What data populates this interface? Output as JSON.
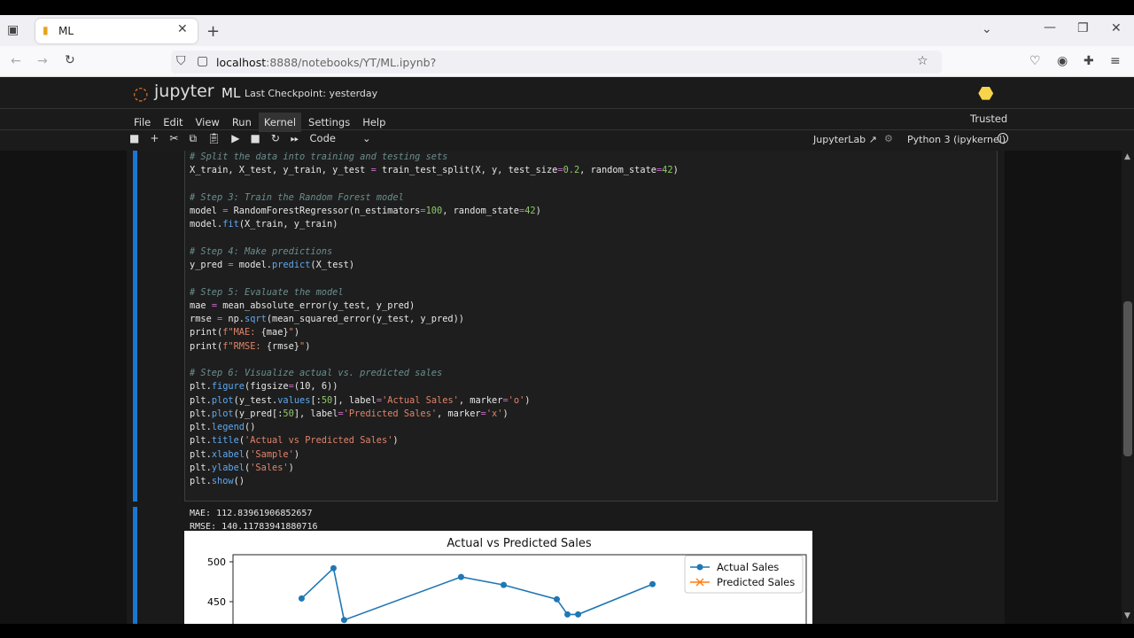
{
  "browser": {
    "tab_title": "ML",
    "url_host": "localhost",
    "url_path": ":8888/notebooks/YT/ML.ipynb?"
  },
  "jupyter": {
    "logo_text": "jupyter",
    "notebook_name": "ML",
    "checkpoint": "Last Checkpoint: yesterday",
    "trusted": "Trusted",
    "menu": [
      "File",
      "Edit",
      "View",
      "Run",
      "Kernel",
      "Settings",
      "Help"
    ],
    "cell_type": "Code",
    "jupyterlab_link": "JupyterLab",
    "kernel": "Python 3 (ipykernel)"
  },
  "code_lines": [
    [
      [
        "# Split the data into training and testing sets",
        "c"
      ]
    ],
    [
      [
        "X_train, X_test, y_train, y_test ",
        "t"
      ],
      [
        "=",
        "o"
      ],
      [
        " train_test_split(X, y, test_size",
        "t"
      ],
      [
        "=",
        "o"
      ],
      [
        "0.2",
        "n"
      ],
      [
        ", random_state",
        "t"
      ],
      [
        "=",
        "o"
      ],
      [
        "42",
        "n"
      ],
      [
        ")",
        "t"
      ]
    ],
    [],
    [
      [
        "# Step 3: Train the Random Forest model",
        "c"
      ]
    ],
    [
      [
        "model ",
        "t"
      ],
      [
        "=",
        "o"
      ],
      [
        " RandomForestRegressor(n_estimators",
        "t"
      ],
      [
        "=",
        "o"
      ],
      [
        "100",
        "n"
      ],
      [
        ", random_state",
        "t"
      ],
      [
        "=",
        "o"
      ],
      [
        "42",
        "n"
      ],
      [
        ")",
        "t"
      ]
    ],
    [
      [
        "model.",
        "t"
      ],
      [
        "fit",
        "f"
      ],
      [
        "(X_train, y_train)",
        "t"
      ]
    ],
    [],
    [
      [
        "# Step 4: Make predictions",
        "c"
      ]
    ],
    [
      [
        "y_pred ",
        "t"
      ],
      [
        "=",
        "o"
      ],
      [
        " model.",
        "t"
      ],
      [
        "predict",
        "f"
      ],
      [
        "(X_test)",
        "t"
      ]
    ],
    [],
    [
      [
        "# Step 5: Evaluate the model",
        "c"
      ]
    ],
    [
      [
        "mae ",
        "t"
      ],
      [
        "=",
        "o"
      ],
      [
        " mean_absolute_error(y_test, y_pred)",
        "t"
      ]
    ],
    [
      [
        "rmse ",
        "t"
      ],
      [
        "=",
        "o"
      ],
      [
        " np.",
        "t"
      ],
      [
        "sqrt",
        "f"
      ],
      [
        "(mean_squared_error(y_test, y_pred))",
        "t"
      ]
    ],
    [
      [
        "print(",
        "t"
      ],
      [
        "f\"MAE: ",
        "s"
      ],
      [
        "{mae}",
        "t"
      ],
      [
        "\"",
        "s"
      ],
      [
        ")",
        "t"
      ]
    ],
    [
      [
        "print(",
        "t"
      ],
      [
        "f\"RMSE: ",
        "s"
      ],
      [
        "{rmse}",
        "t"
      ],
      [
        "\"",
        "s"
      ],
      [
        ")",
        "t"
      ]
    ],
    [],
    [
      [
        "# Step 6: Visualize actual vs. predicted sales",
        "c"
      ]
    ],
    [
      [
        "plt.",
        "t"
      ],
      [
        "figure",
        "f"
      ],
      [
        "(figsize",
        "t"
      ],
      [
        "=",
        "o"
      ],
      [
        "(10, 6))",
        "t"
      ]
    ],
    [
      [
        "plt.",
        "t"
      ],
      [
        "plot",
        "f"
      ],
      [
        "(y_test.",
        "t"
      ],
      [
        "values",
        "f"
      ],
      [
        "[:",
        "t"
      ],
      [
        "50",
        "n"
      ],
      [
        "], label",
        "t"
      ],
      [
        "=",
        "o"
      ],
      [
        "'Actual Sales'",
        "s"
      ],
      [
        ", marker",
        "t"
      ],
      [
        "=",
        "o"
      ],
      [
        "'o'",
        "s"
      ],
      [
        ")",
        "t"
      ]
    ],
    [
      [
        "plt.",
        "t"
      ],
      [
        "plot",
        "f"
      ],
      [
        "(y_pred[:",
        "t"
      ],
      [
        "50",
        "n"
      ],
      [
        "], label",
        "t"
      ],
      [
        "=",
        "o"
      ],
      [
        "'Predicted Sales'",
        "s"
      ],
      [
        ", marker",
        "t"
      ],
      [
        "=",
        "o"
      ],
      [
        "'x'",
        "s"
      ],
      [
        ")",
        "t"
      ]
    ],
    [
      [
        "plt.",
        "t"
      ],
      [
        "legend",
        "f"
      ],
      [
        "()",
        "t"
      ]
    ],
    [
      [
        "plt.",
        "t"
      ],
      [
        "title",
        "f"
      ],
      [
        "(",
        "t"
      ],
      [
        "'Actual vs Predicted Sales'",
        "s"
      ],
      [
        ")",
        "t"
      ]
    ],
    [
      [
        "plt.",
        "t"
      ],
      [
        "xlabel",
        "f"
      ],
      [
        "(",
        "t"
      ],
      [
        "'Sample'",
        "s"
      ],
      [
        ")",
        "t"
      ]
    ],
    [
      [
        "plt.",
        "t"
      ],
      [
        "ylabel",
        "f"
      ],
      [
        "(",
        "t"
      ],
      [
        "'Sales'",
        "s"
      ],
      [
        ")",
        "t"
      ]
    ],
    [
      [
        "plt.",
        "t"
      ],
      [
        "show",
        "f"
      ],
      [
        "()",
        "t"
      ]
    ]
  ],
  "output": {
    "mae_line": "MAE: 112.83961906852657",
    "rmse_line": "RMSE: 140.11783941880716"
  },
  "chart_data": {
    "type": "line",
    "title": "Actual vs Predicted Sales",
    "legend_placement": "upper-right",
    "yticks": [
      500,
      450
    ],
    "series": [
      {
        "name": "Actual Sales",
        "color": "#1f77b4",
        "marker": "o",
        "points": [
          [
            4,
            454
          ],
          [
            7,
            492
          ],
          [
            8,
            427
          ],
          [
            19,
            481
          ],
          [
            23,
            471
          ],
          [
            28,
            453
          ],
          [
            29,
            434
          ],
          [
            30,
            434
          ],
          [
            37,
            472
          ]
        ]
      },
      {
        "name": "Predicted Sales",
        "color": "#ff7f0e",
        "marker": "x",
        "points": []
      }
    ]
  }
}
